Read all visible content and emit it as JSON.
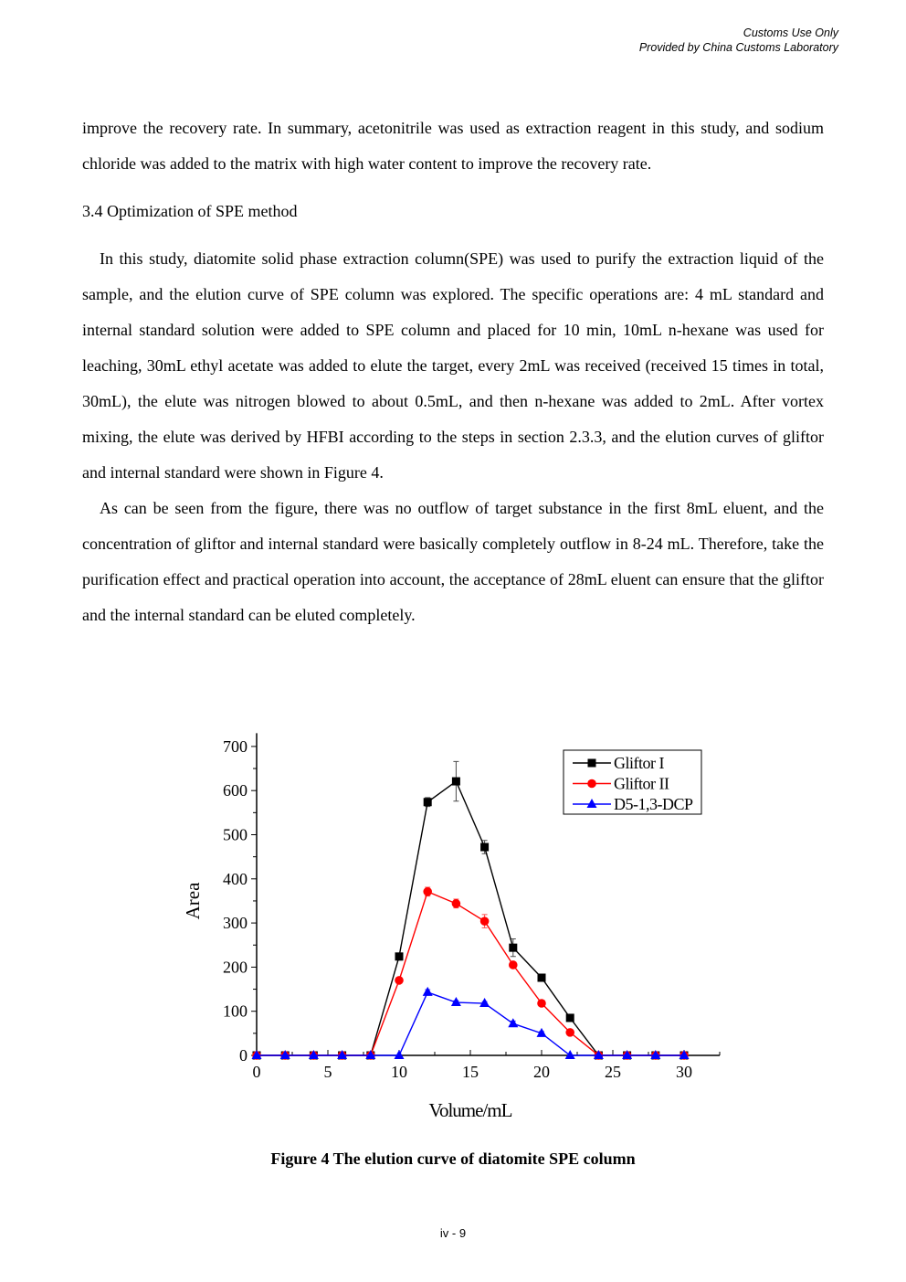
{
  "header": {
    "line1": "Customs Use Only",
    "line2": "Provided by China Customs Laboratory"
  },
  "paragraphs": {
    "p1": "improve the recovery rate. In summary, acetonitrile was used as extraction reagent in this study, and sodium chloride was added to the matrix with high water content to improve the recovery rate.",
    "section": "3.4 Optimization of SPE method",
    "p2": "In this study, diatomite solid phase extraction column(SPE) was used to purify the extraction liquid of the sample, and the elution curve of SPE column was explored. The specific operations are: 4 mL standard and internal standard solution were added to SPE column and placed for 10 min, 10mL n-hexane was used for leaching, 30mL ethyl acetate was added to elute the target, every 2mL was received (received 15 times in total, 30mL), the elute was nitrogen blowed to about 0.5mL, and then  n-hexane was added to 2mL. After vortex mixing, the elute was derived by HFBI according to the steps in section 2.3.3, and the elution curves of gliftor and internal standard were shown in Figure 4.",
    "p3": "As can be seen from the figure, there was no outflow of target substance in the first 8mL eluent, and the concentration of gliftor and internal standard were basically completely outflow in 8-24 mL. Therefore, take the purification effect and practical operation into account, the acceptance of 28mL eluent can ensure that the gliftor and the internal standard can be eluted completely."
  },
  "caption": "Figure 4 The elution curve of diatomite SPE column",
  "page_number": "iv - 9",
  "chart_data": {
    "type": "line",
    "xlabel": "Volume/mL",
    "ylabel": "Area",
    "xlim": [
      0,
      32.5
    ],
    "ylim": [
      0,
      730
    ],
    "xticks": [
      0,
      5,
      10,
      15,
      20,
      25,
      30
    ],
    "yticks": [
      0,
      100,
      200,
      300,
      400,
      500,
      600,
      700
    ],
    "legend": "top-right",
    "grid": false,
    "x": [
      0,
      2,
      4,
      6,
      8,
      10,
      12,
      14,
      16,
      18,
      20,
      22,
      24,
      26,
      28,
      30
    ],
    "series": [
      {
        "name": "Gliftor I",
        "color": "#000000",
        "marker": "square",
        "values": [
          0,
          0,
          0,
          0,
          0,
          224,
          574,
          621,
          472,
          244,
          176,
          85,
          0,
          0,
          0,
          0
        ],
        "errors": [
          0,
          0,
          0,
          0,
          0,
          8,
          10,
          45,
          15,
          20,
          5,
          8,
          0,
          0,
          0,
          0
        ]
      },
      {
        "name": "Gliftor II",
        "color": "#ff0000",
        "marker": "circle",
        "values": [
          0,
          0,
          0,
          0,
          0,
          170,
          371,
          344,
          304,
          205,
          118,
          52,
          0,
          0,
          0,
          0
        ],
        "errors": [
          0,
          0,
          0,
          0,
          0,
          5,
          10,
          10,
          15,
          5,
          5,
          3,
          0,
          0,
          0,
          0
        ]
      },
      {
        "name": "D5-1,3-DCP",
        "color": "#0000ff",
        "marker": "triangle",
        "values": [
          0,
          0,
          0,
          0,
          0,
          0,
          143,
          120,
          118,
          72,
          50,
          0,
          0,
          0,
          0,
          0
        ],
        "errors": [
          0,
          0,
          0,
          0,
          0,
          0,
          6,
          4,
          4,
          6,
          4,
          0,
          0,
          0,
          0,
          0
        ]
      }
    ]
  }
}
